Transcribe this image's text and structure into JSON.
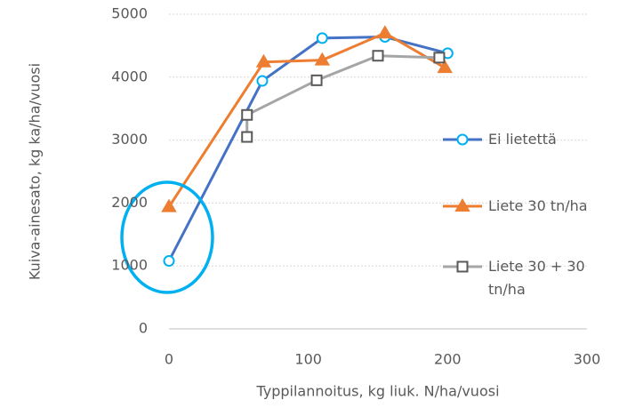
{
  "chart_data": {
    "type": "line",
    "x_label": "Typpilannoitus, kg liuk. N/ha/vuosi",
    "y_label": "Kuiva-ainesato, kg ka/ha/vuosi",
    "xlim": [
      0,
      300
    ],
    "xticks": [
      0,
      100,
      200,
      300
    ],
    "ylim": [
      0,
      5000
    ],
    "yticks": [
      0,
      1000,
      2000,
      3000,
      4000,
      5000
    ],
    "grid": true,
    "legend": "right",
    "series": [
      {
        "name": "Ei lietettä",
        "color": "#4472c4",
        "marker_color": "#00b0f0",
        "marker": "circle",
        "x": [
          0,
          67,
          110,
          155,
          200
        ],
        "values": [
          1080,
          3940,
          4620,
          4640,
          4380
        ]
      },
      {
        "name": "Liete 30 tn/ha",
        "color": "#ed7d31",
        "marker_color": "#ed7d31",
        "marker": "triangle",
        "x": [
          0,
          68,
          110,
          155,
          198
        ],
        "values": [
          1940,
          4240,
          4270,
          4700,
          4150
        ]
      },
      {
        "name": "Liete 30 + 30 tn/ha",
        "color": "#a5a5a5",
        "marker_color": "#595959",
        "marker": "square",
        "x": [
          56,
          56,
          106,
          150,
          194
        ],
        "values": [
          3050,
          3400,
          3950,
          4340,
          4310
        ]
      }
    ]
  }
}
